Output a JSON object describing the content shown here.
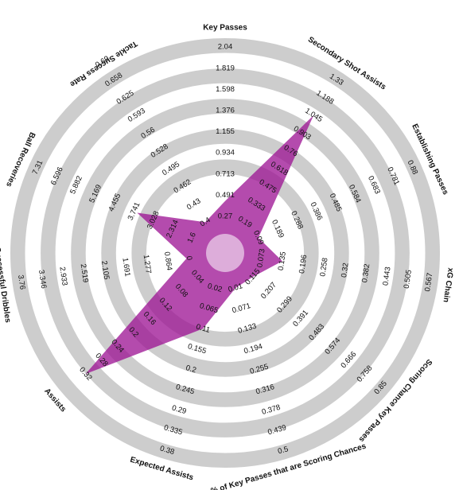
{
  "chart_data": {
    "type": "radar",
    "title": "",
    "colors": {
      "ring": "#cdcdcd",
      "background": "#ffffff",
      "fill": "#9b0f92",
      "fill_opacity": 0.75,
      "center_dot": "#ffffff"
    },
    "grid": true,
    "ring_count": 5,
    "metrics": [
      {
        "label": "Key Passes",
        "value": 0.43,
        "ticks": [
          "0.27",
          "0.491",
          "0.713",
          "0.934",
          "1.155",
          "1.376",
          "1.598",
          "1.819",
          "2.04"
        ]
      },
      {
        "label": "Secondary Shot Assists",
        "value": 1.045,
        "ticks": [
          "0.19",
          "0.333",
          "0.475",
          "0.618",
          "0.76",
          "0.903",
          "1.045",
          "1.188",
          "1.33"
        ]
      },
      {
        "label": "Establishing Passes",
        "value": 0.09,
        "ticks": [
          "0.09",
          "0.189",
          "0.288",
          "0.386",
          "0.485",
          "0.584",
          "0.683",
          "0.781",
          "0.88"
        ]
      },
      {
        "label": "xG Chain",
        "value": 0.135,
        "ticks": [
          "0.073",
          "0.135",
          "0.196",
          "0.258",
          "0.32",
          "0.382",
          "0.443",
          "0.505",
          "0.567"
        ]
      },
      {
        "label": "Scoring Chance Key Passes",
        "value": 0.115,
        "ticks": [
          "0.115",
          "0.207",
          "0.299",
          "0.391",
          "0.483",
          "0.574",
          "0.666",
          "0.758",
          "0.85"
        ]
      },
      {
        "label": "% of Key Passes that are Scoring Chances",
        "value": 0.01,
        "ticks": [
          "0.01",
          "0.071",
          "0.133",
          "0.194",
          "0.255",
          "0.316",
          "0.378",
          "0.439",
          "0.5"
        ]
      },
      {
        "label": "Expected Assists",
        "value": 0.11,
        "ticks": [
          "0.02",
          "0.065",
          "0.11",
          "0.155",
          "0.2",
          "0.245",
          "0.29",
          "0.335",
          "0.38"
        ]
      },
      {
        "label": "Assists",
        "value": 0.32,
        "ticks": [
          "0.04",
          "0.08",
          "0.12",
          "0.16",
          "0.2",
          "0.24",
          "0.28",
          "0.32"
        ]
      },
      {
        "label": "Successful Dribbles",
        "value": 0.1,
        "ticks": [
          "0",
          "0.864",
          "1.277",
          "1.691",
          "2.105",
          "2.519",
          "2.933",
          "3.346",
          "3.76"
        ]
      },
      {
        "label": "Ball Recoveries",
        "value": 3.628,
        "ticks": [
          "1.6",
          "2.314",
          "3.028",
          "3.741",
          "4.455",
          "5.169",
          "5.882",
          "6.596",
          "7.31"
        ]
      },
      {
        "label": "Tackle Success Rate",
        "value": 0.4,
        "ticks": [
          "0.4",
          "0.43",
          "0.462",
          "0.495",
          "0.528",
          "0.56",
          "0.593",
          "0.625",
          "0.658",
          "0.69"
        ]
      }
    ]
  }
}
